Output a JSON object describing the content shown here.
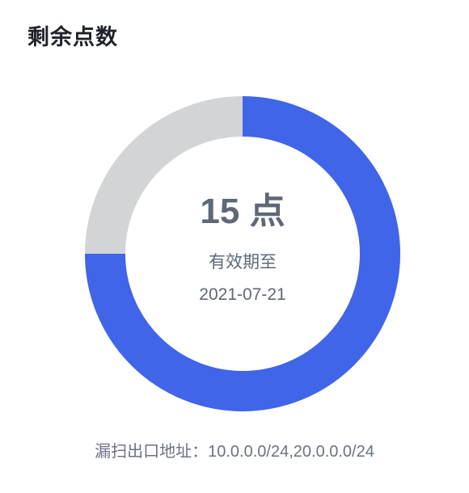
{
  "card": {
    "title": "剩余点数"
  },
  "donut": {
    "value_text": "15 点",
    "expiry_label": "有效期至",
    "expiry_date": "2021-07-21",
    "used_fraction": 0.25,
    "remaining_fraction": 0.75,
    "colors": {
      "remaining": "#4065e8",
      "used": "#d3d4d6"
    }
  },
  "footer": {
    "label": "漏扫出口地址：",
    "addresses": "10.0.0.0/24,20.0.0.0/24"
  }
}
